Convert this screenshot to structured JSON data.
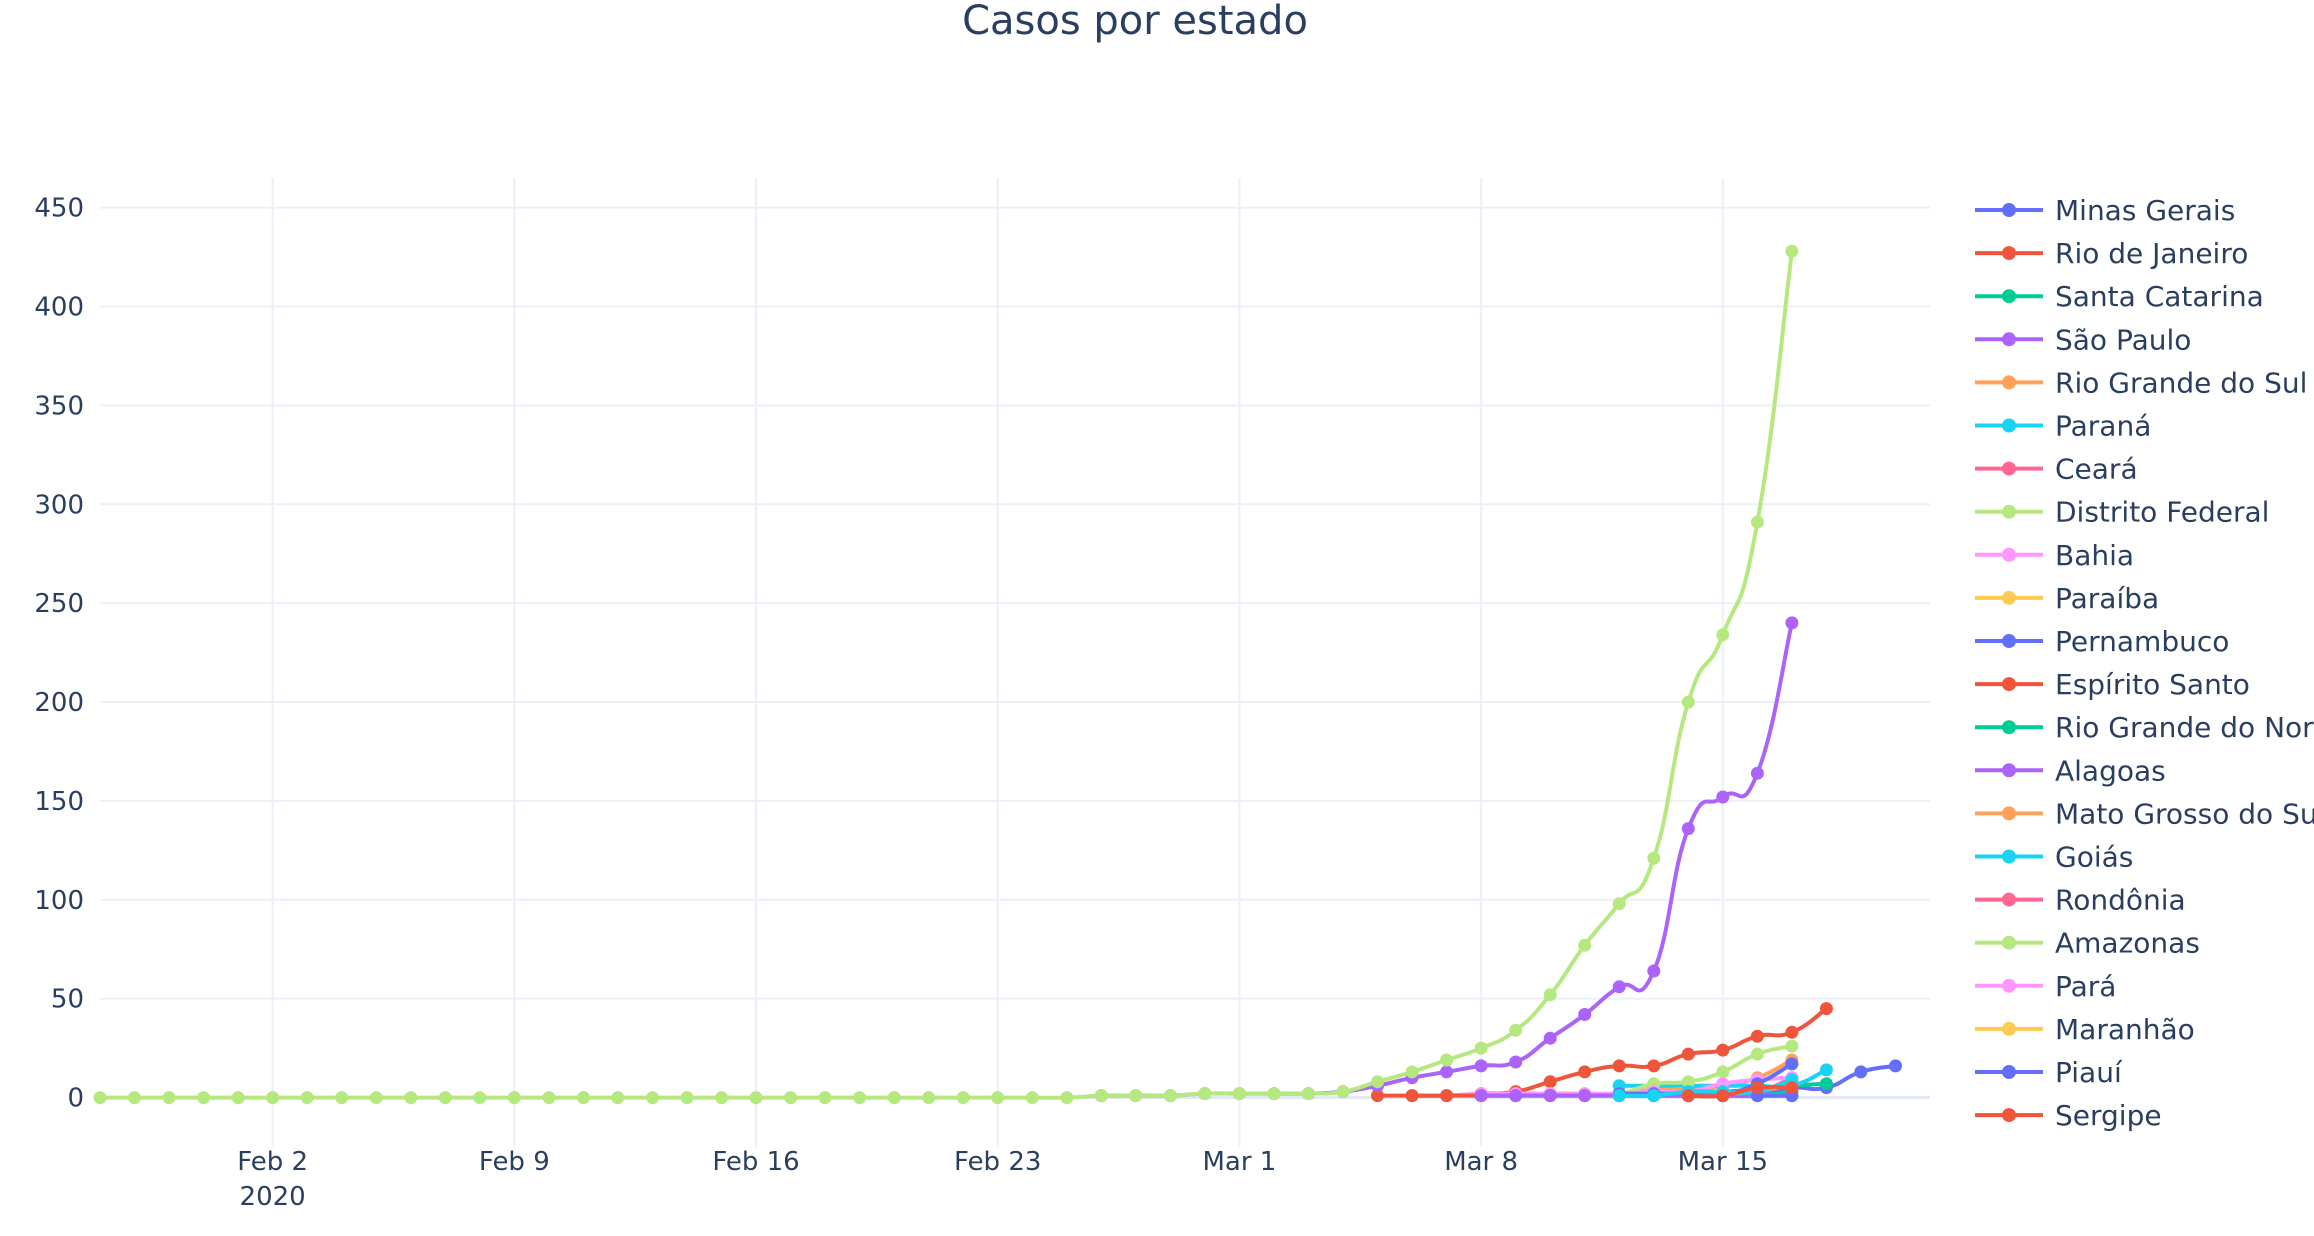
{
  "chart_data": {
    "type": "line",
    "title": "Casos por estado",
    "xlabel": "",
    "ylabel": "",
    "x_range": [
      "2020-01-28",
      "2020-03-21"
    ],
    "ylim": [
      -25,
      465
    ],
    "y_ticks": [
      0,
      50,
      100,
      150,
      200,
      250,
      300,
      350,
      400,
      450
    ],
    "x_ticks": [
      {
        "date": "2020-02-02",
        "label": "Feb 2",
        "sublabel": "2020"
      },
      {
        "date": "2020-02-09",
        "label": "Feb 9"
      },
      {
        "date": "2020-02-16",
        "label": "Feb 16"
      },
      {
        "date": "2020-02-23",
        "label": "Feb 23"
      },
      {
        "date": "2020-03-01",
        "label": "Mar 1"
      },
      {
        "date": "2020-03-08",
        "label": "Mar 8"
      },
      {
        "date": "2020-03-15",
        "label": "Mar 15"
      }
    ],
    "grid": true,
    "legend_position": "right",
    "series": [
      {
        "name": "Minas Gerais",
        "color": "#636efa",
        "points": [
          [
            "2020-03-13",
            1
          ],
          [
            "2020-03-14",
            1
          ],
          [
            "2020-03-15",
            1
          ],
          [
            "2020-03-16",
            2
          ],
          [
            "2020-03-17",
            5
          ],
          [
            "2020-03-18",
            5
          ],
          [
            "2020-03-19",
            13
          ],
          [
            "2020-03-20",
            16
          ]
        ]
      },
      {
        "name": "Rio de Janeiro",
        "color": "#EF553B",
        "points": [
          [
            "2020-03-05",
            1
          ],
          [
            "2020-03-06",
            1
          ],
          [
            "2020-03-07",
            1
          ],
          [
            "2020-03-08",
            2
          ],
          [
            "2020-03-09",
            3
          ],
          [
            "2020-03-10",
            8
          ],
          [
            "2020-03-11",
            13
          ],
          [
            "2020-03-12",
            16
          ],
          [
            "2020-03-13",
            16
          ],
          [
            "2020-03-14",
            22
          ],
          [
            "2020-03-15",
            24
          ],
          [
            "2020-03-16",
            31
          ],
          [
            "2020-03-17",
            33
          ],
          [
            "2020-03-18",
            45
          ]
        ]
      },
      {
        "name": "Santa Catarina",
        "color": "#00cc96",
        "points": [
          [
            "2020-03-12",
            2
          ],
          [
            "2020-03-13",
            2
          ],
          [
            "2020-03-14",
            2
          ],
          [
            "2020-03-15",
            3
          ],
          [
            "2020-03-16",
            4
          ],
          [
            "2020-03-17",
            6
          ],
          [
            "2020-03-18",
            7
          ]
        ]
      },
      {
        "name": "São Paulo",
        "color": "#ab63fa",
        "points": [
          [
            "2020-02-26",
            1
          ],
          [
            "2020-02-27",
            1
          ],
          [
            "2020-02-28",
            1
          ],
          [
            "2020-02-29",
            2
          ],
          [
            "2020-03-01",
            2
          ],
          [
            "2020-03-02",
            2
          ],
          [
            "2020-03-03",
            2
          ],
          [
            "2020-03-04",
            3
          ],
          [
            "2020-03-05",
            6
          ],
          [
            "2020-03-06",
            10
          ],
          [
            "2020-03-07",
            13
          ],
          [
            "2020-03-08",
            16
          ],
          [
            "2020-03-09",
            18
          ],
          [
            "2020-03-10",
            30
          ],
          [
            "2020-03-11",
            42
          ],
          [
            "2020-03-12",
            56
          ],
          [
            "2020-03-13",
            64
          ],
          [
            "2020-03-14",
            136
          ],
          [
            "2020-03-15",
            152
          ],
          [
            "2020-03-16",
            164
          ],
          [
            "2020-03-17",
            240
          ]
        ]
      },
      {
        "name": "Rio Grande do Sul",
        "color": "#FFA15A",
        "points": [
          [
            "2020-03-11",
            1
          ],
          [
            "2020-03-12",
            2
          ],
          [
            "2020-03-13",
            4
          ],
          [
            "2020-03-14",
            4
          ],
          [
            "2020-03-15",
            6
          ],
          [
            "2020-03-16",
            10
          ],
          [
            "2020-03-17",
            19
          ]
        ]
      },
      {
        "name": "Paraná",
        "color": "#19d3f3",
        "points": [
          [
            "2020-03-12",
            6
          ],
          [
            "2020-03-13",
            6
          ],
          [
            "2020-03-14",
            6
          ],
          [
            "2020-03-15",
            6
          ],
          [
            "2020-03-16",
            6
          ],
          [
            "2020-03-17",
            6
          ],
          [
            "2020-03-18",
            14
          ]
        ]
      },
      {
        "name": "Ceará",
        "color": "#FF6692",
        "points": [
          [
            "2020-03-15",
            3
          ],
          [
            "2020-03-16",
            3
          ],
          [
            "2020-03-17",
            10
          ]
        ]
      },
      {
        "name": "Distrito Federal",
        "color": "#B6E880",
        "points": [
          [
            "2020-03-07",
            1
          ],
          [
            "2020-03-08",
            1
          ],
          [
            "2020-03-09",
            1
          ],
          [
            "2020-03-10",
            2
          ],
          [
            "2020-03-11",
            2
          ],
          [
            "2020-03-12",
            2
          ],
          [
            "2020-03-13",
            7
          ],
          [
            "2020-03-14",
            8
          ],
          [
            "2020-03-15",
            13
          ],
          [
            "2020-03-16",
            22
          ],
          [
            "2020-03-17",
            26
          ]
        ]
      },
      {
        "name": "Bahia",
        "color": "#FF97FF",
        "points": [
          [
            "2020-03-06",
            1
          ],
          [
            "2020-03-07",
            1
          ],
          [
            "2020-03-08",
            2
          ],
          [
            "2020-03-09",
            2
          ],
          [
            "2020-03-10",
            2
          ],
          [
            "2020-03-11",
            2
          ],
          [
            "2020-03-12",
            2
          ],
          [
            "2020-03-13",
            3
          ],
          [
            "2020-03-14",
            3
          ],
          [
            "2020-03-15",
            7
          ],
          [
            "2020-03-16",
            9
          ],
          [
            "2020-03-17",
            10
          ]
        ]
      },
      {
        "name": "Paraíba",
        "color": "#FECB52",
        "points": [
          [
            "2020-03-16",
            1
          ],
          [
            "2020-03-17",
            1
          ]
        ]
      },
      {
        "name": "Pernambuco",
        "color": "#636efa",
        "points": [
          [
            "2020-03-12",
            2
          ],
          [
            "2020-03-13",
            2
          ],
          [
            "2020-03-14",
            2
          ],
          [
            "2020-03-15",
            2
          ],
          [
            "2020-03-16",
            7
          ],
          [
            "2020-03-17",
            17
          ]
        ]
      },
      {
        "name": "Espírito Santo",
        "color": "#EF553B",
        "points": [
          [
            "2020-03-06",
            1
          ],
          [
            "2020-03-07",
            1
          ],
          [
            "2020-03-08",
            1
          ],
          [
            "2020-03-09",
            1
          ],
          [
            "2020-03-10",
            1
          ],
          [
            "2020-03-11",
            1
          ],
          [
            "2020-03-12",
            1
          ],
          [
            "2020-03-13",
            1
          ],
          [
            "2020-03-14",
            1
          ],
          [
            "2020-03-15",
            1
          ],
          [
            "2020-03-16",
            4
          ],
          [
            "2020-03-17",
            5
          ]
        ]
      },
      {
        "name": "Rio Grande do Norte",
        "color": "#00cc96",
        "points": [
          [
            "2020-03-13",
            1
          ],
          [
            "2020-03-14",
            1
          ],
          [
            "2020-03-15",
            1
          ],
          [
            "2020-03-16",
            1
          ],
          [
            "2020-03-17",
            3
          ]
        ]
      },
      {
        "name": "Alagoas",
        "color": "#ab63fa",
        "points": [
          [
            "2020-03-08",
            1
          ],
          [
            "2020-03-09",
            1
          ],
          [
            "2020-03-10",
            1
          ],
          [
            "2020-03-11",
            1
          ],
          [
            "2020-03-12",
            1
          ],
          [
            "2020-03-13",
            1
          ],
          [
            "2020-03-14",
            1
          ],
          [
            "2020-03-15",
            1
          ],
          [
            "2020-03-16",
            1
          ],
          [
            "2020-03-17",
            1
          ]
        ]
      },
      {
        "name": "Mato Grosso do Sul",
        "color": "#FFA15A",
        "points": [
          [
            "2020-03-15",
            2
          ],
          [
            "2020-03-16",
            3
          ],
          [
            "2020-03-17",
            7
          ]
        ]
      },
      {
        "name": "Goiás",
        "color": "#19d3f3",
        "points": [
          [
            "2020-03-12",
            1
          ],
          [
            "2020-03-13",
            1
          ],
          [
            "2020-03-14",
            3
          ],
          [
            "2020-03-15",
            3
          ],
          [
            "2020-03-16",
            3
          ],
          [
            "2020-03-17",
            9
          ]
        ]
      },
      {
        "name": "Rondônia",
        "color": "#FF6692",
        "points": [
          [
            "2020-03-16",
            1
          ],
          [
            "2020-03-17",
            1
          ]
        ]
      },
      {
        "name": "Amazonas",
        "color": "#B6E880",
        "points": [
          [
            "2020-01-28",
            0
          ],
          [
            "2020-01-29",
            0
          ],
          [
            "2020-01-30",
            0
          ],
          [
            "2020-01-31",
            0
          ],
          [
            "2020-02-01",
            0
          ],
          [
            "2020-02-02",
            0
          ],
          [
            "2020-02-03",
            0
          ],
          [
            "2020-02-04",
            0
          ],
          [
            "2020-02-05",
            0
          ],
          [
            "2020-02-06",
            0
          ],
          [
            "2020-02-07",
            0
          ],
          [
            "2020-02-08",
            0
          ],
          [
            "2020-02-09",
            0
          ],
          [
            "2020-02-10",
            0
          ],
          [
            "2020-02-11",
            0
          ],
          [
            "2020-02-12",
            0
          ],
          [
            "2020-02-13",
            0
          ],
          [
            "2020-02-14",
            0
          ],
          [
            "2020-02-15",
            0
          ],
          [
            "2020-02-16",
            0
          ],
          [
            "2020-02-17",
            0
          ],
          [
            "2020-02-18",
            0
          ],
          [
            "2020-02-19",
            0
          ],
          [
            "2020-02-20",
            0
          ],
          [
            "2020-02-21",
            0
          ],
          [
            "2020-02-22",
            0
          ],
          [
            "2020-02-23",
            0
          ],
          [
            "2020-02-24",
            0
          ],
          [
            "2020-02-25",
            0
          ],
          [
            "2020-02-26",
            1
          ],
          [
            "2020-02-27",
            1
          ],
          [
            "2020-02-28",
            1
          ],
          [
            "2020-02-29",
            2
          ],
          [
            "2020-03-01",
            2
          ],
          [
            "2020-03-02",
            2
          ],
          [
            "2020-03-03",
            2
          ],
          [
            "2020-03-04",
            3
          ],
          [
            "2020-03-05",
            8
          ],
          [
            "2020-03-06",
            13
          ],
          [
            "2020-03-07",
            19
          ],
          [
            "2020-03-08",
            25
          ],
          [
            "2020-03-09",
            34
          ],
          [
            "2020-03-10",
            52
          ],
          [
            "2020-03-11",
            77
          ],
          [
            "2020-03-12",
            98
          ],
          [
            "2020-03-13",
            121
          ],
          [
            "2020-03-14",
            200
          ],
          [
            "2020-03-15",
            234
          ],
          [
            "2020-03-16",
            291
          ],
          [
            "2020-03-17",
            428
          ]
        ]
      },
      {
        "name": "Pará",
        "color": "#FF97FF",
        "points": [
          [
            "2020-03-16",
            1
          ],
          [
            "2020-03-17",
            1
          ]
        ]
      },
      {
        "name": "Maranhão",
        "color": "#FECB52",
        "points": [
          [
            "2020-03-16",
            1
          ],
          [
            "2020-03-17",
            1
          ]
        ]
      },
      {
        "name": "Piauí",
        "color": "#636efa",
        "points": [
          [
            "2020-03-16",
            1
          ],
          [
            "2020-03-17",
            1
          ]
        ]
      },
      {
        "name": "Sergipe",
        "color": "#EF553B",
        "points": [
          [
            "2020-03-14",
            1
          ],
          [
            "2020-03-15",
            1
          ],
          [
            "2020-03-16",
            5
          ],
          [
            "2020-03-17",
            5
          ]
        ]
      }
    ]
  }
}
